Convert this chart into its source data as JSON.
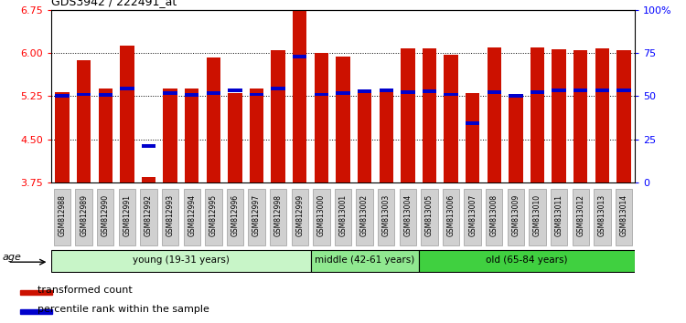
{
  "title": "GDS3942 / 222491_at",
  "samples": [
    "GSM812988",
    "GSM812989",
    "GSM812990",
    "GSM812991",
    "GSM812992",
    "GSM812993",
    "GSM812994",
    "GSM812995",
    "GSM812996",
    "GSM812997",
    "GSM812998",
    "GSM812999",
    "GSM813000",
    "GSM813001",
    "GSM813002",
    "GSM813003",
    "GSM813004",
    "GSM813005",
    "GSM813006",
    "GSM813007",
    "GSM813008",
    "GSM813009",
    "GSM813010",
    "GSM813011",
    "GSM813012",
    "GSM813013",
    "GSM813014"
  ],
  "red_values": [
    5.32,
    5.87,
    5.38,
    6.12,
    3.85,
    5.38,
    5.38,
    5.92,
    5.3,
    5.38,
    6.04,
    6.75,
    6.0,
    5.93,
    5.37,
    5.38,
    6.08,
    6.08,
    5.97,
    5.3,
    6.1,
    5.26,
    6.1,
    6.07,
    6.05,
    6.08,
    6.05
  ],
  "blue_values": [
    5.25,
    5.28,
    5.27,
    5.38,
    4.38,
    5.3,
    5.27,
    5.3,
    5.35,
    5.28,
    5.38,
    5.93,
    5.28,
    5.3,
    5.33,
    5.35,
    5.32,
    5.33,
    5.28,
    4.78,
    5.32,
    5.26,
    5.32,
    5.35,
    5.35,
    5.35,
    5.35
  ],
  "groups": [
    {
      "label": "young (19-31 years)",
      "start": 0,
      "end": 12,
      "color": "#c8f5c8"
    },
    {
      "label": "middle (42-61 years)",
      "start": 12,
      "end": 17,
      "color": "#90e890"
    },
    {
      "label": "old (65-84 years)",
      "start": 17,
      "end": 27,
      "color": "#40d040"
    }
  ],
  "ylim": [
    3.75,
    6.75
  ],
  "yticks": [
    3.75,
    4.5,
    5.25,
    6.0,
    6.75
  ],
  "y2ticks": [
    0,
    25,
    50,
    75,
    100
  ],
  "y2ticklabels": [
    "0",
    "25",
    "50",
    "75",
    "100%"
  ],
  "bar_color": "#cc1100",
  "marker_color": "#0000cc",
  "tick_bg_color": "#d0d0d0",
  "legend_items": [
    "transformed count",
    "percentile rank within the sample"
  ]
}
